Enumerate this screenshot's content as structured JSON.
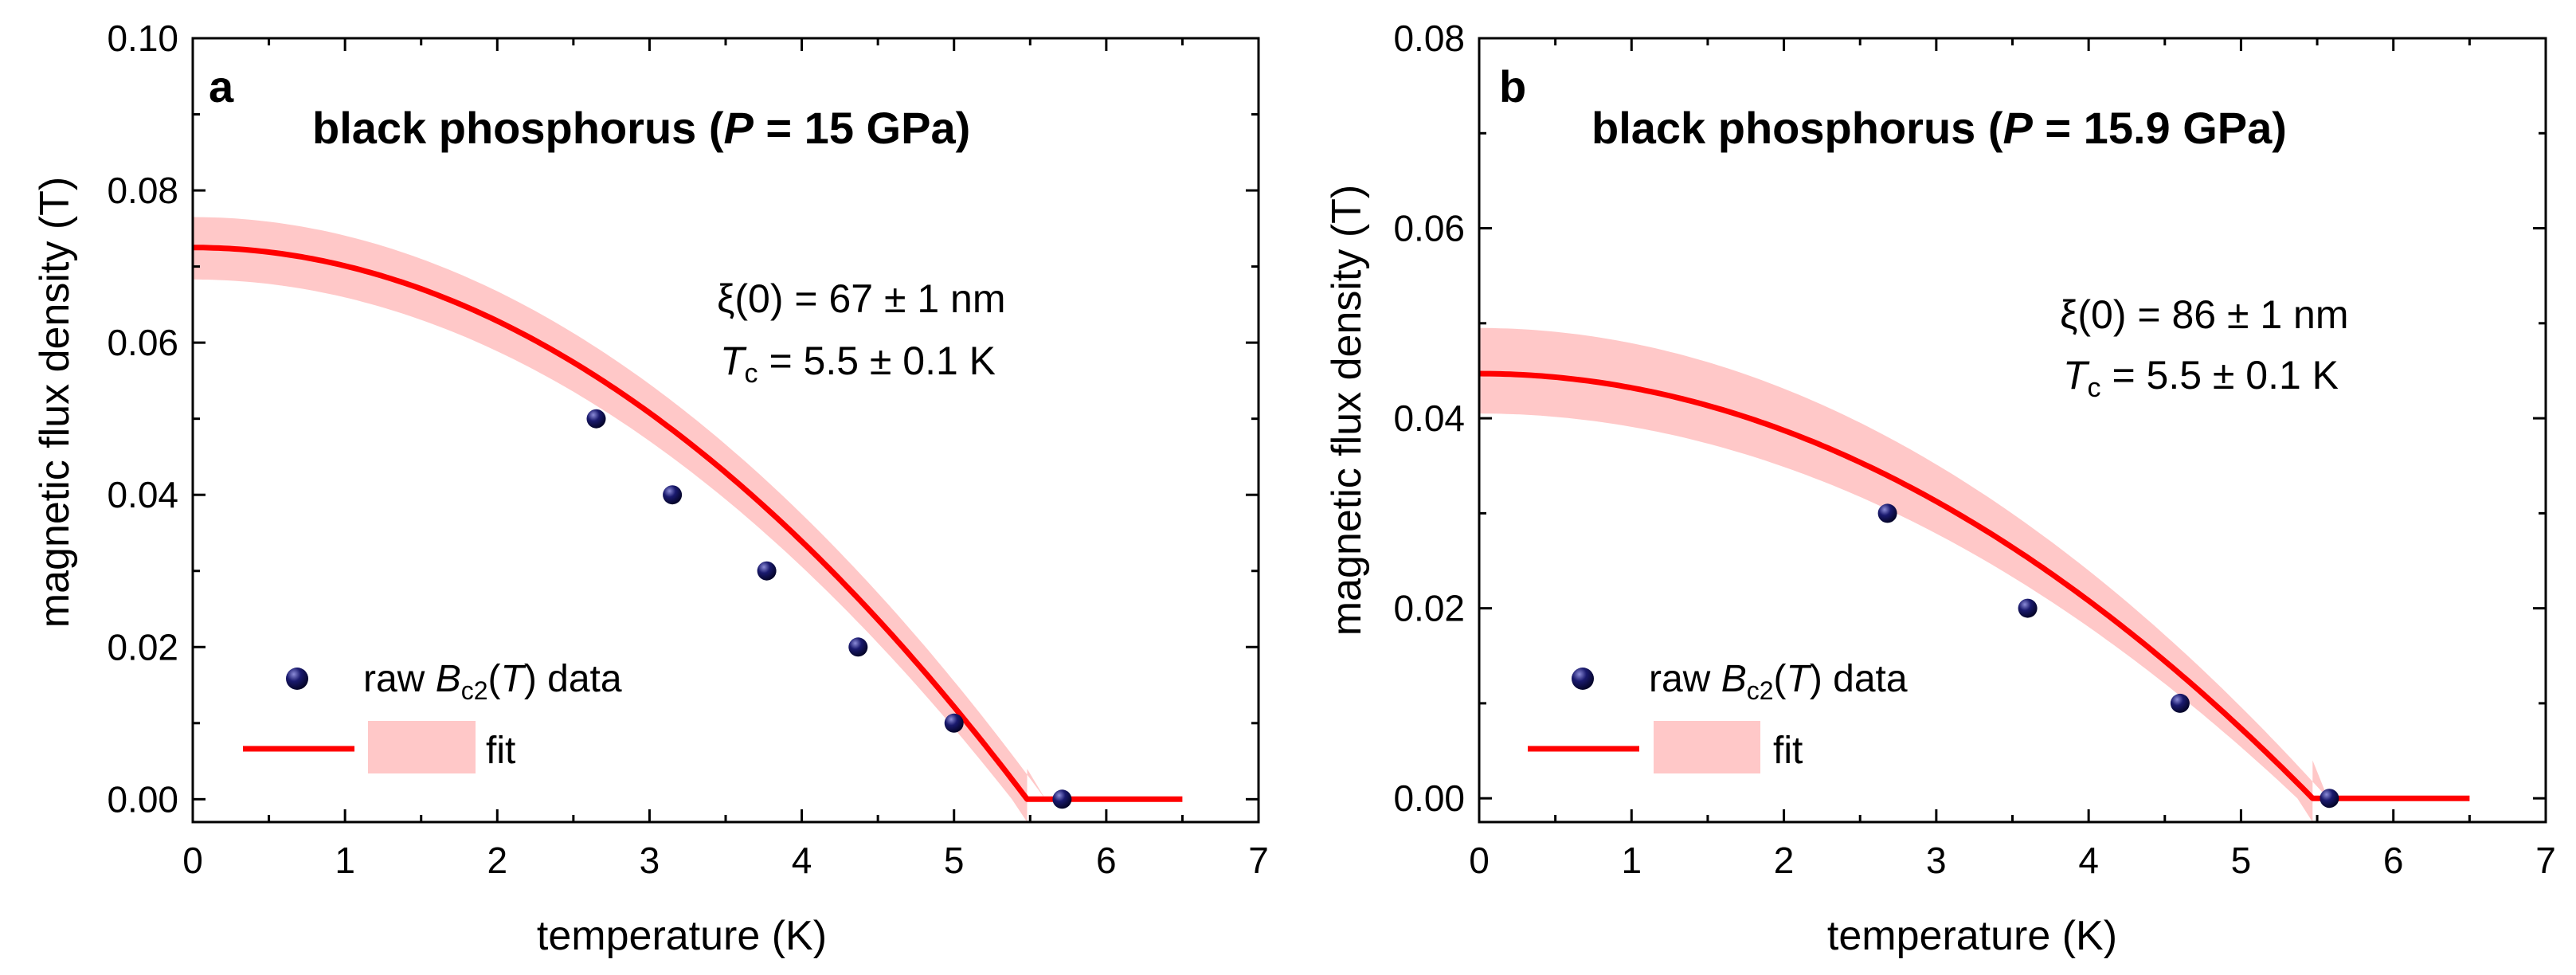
{
  "colors": {
    "fit_line": "#ff0000",
    "band": "#ffc8c8",
    "marker": "#1a1a6e",
    "marker_highlight": "#8c8cd8",
    "axis": "#000000"
  },
  "chart_data": [
    {
      "type": "scatter",
      "panel": "a",
      "title": {
        "prefix": "black phosphorus (",
        "italic": "P",
        "suffix": " = 15 GPa)"
      },
      "xlabel": "temperature (K)",
      "ylabel": "magnetic flux density (T)",
      "xlim": [
        0,
        7
      ],
      "ylim": [
        -0.003,
        0.1
      ],
      "xticks": [
        0,
        1,
        2,
        3,
        4,
        5,
        6,
        7
      ],
      "yticks": [
        0.0,
        0.02,
        0.04,
        0.06,
        0.08,
        0.1
      ],
      "ytick_labels": [
        "0.00",
        "0.02",
        "0.04",
        "0.06",
        "0.08",
        "0.10"
      ],
      "grid": false,
      "annotation": {
        "xi_line": "ξ(0) = 67 ± 1 nm",
        "tc_symbol": "T",
        "tc_sub": "c",
        "tc_value": " = 5.5 ± 0.1 K"
      },
      "legend": {
        "position": "bottom-left",
        "data_prefix": "raw ",
        "data_symbol": "B",
        "data_sub": "c2",
        "data_paren_open": "(",
        "data_var": "T",
        "data_suffix": ") data",
        "fit_label": "fit"
      },
      "series": [
        {
          "name": "raw Bc2(T) data",
          "x": [
            2.65,
            3.15,
            3.77,
            4.37,
            5.0,
            5.71
          ],
          "y": [
            0.05,
            0.04,
            0.03,
            0.02,
            0.01,
            0.0
          ]
        },
        {
          "name": "fit",
          "model": "Bc2(0)*(1-(T/Tc)^2), clipped to 0 above Tc",
          "bc2_zero": 0.0725,
          "tc": 5.48,
          "x_end": 6.5,
          "band_upper": 0.0765,
          "band_lower": 0.0683,
          "band_tc_upper": 5.6,
          "band_tc_lower": 5.38
        }
      ]
    },
    {
      "type": "scatter",
      "panel": "b",
      "title": {
        "prefix": "black phosphorus (",
        "italic": "P",
        "suffix": " = 15.9 GPa)"
      },
      "xlabel": "temperature (K)",
      "ylabel": "magnetic flux density (T)",
      "xlim": [
        0,
        7
      ],
      "ylim": [
        -0.0025,
        0.08
      ],
      "xticks": [
        0,
        1,
        2,
        3,
        4,
        5,
        6,
        7
      ],
      "yticks": [
        0.0,
        0.02,
        0.04,
        0.06,
        0.08
      ],
      "ytick_labels": [
        "0.00",
        "0.02",
        "0.04",
        "0.06",
        "0.08"
      ],
      "grid": false,
      "annotation": {
        "xi_line": "ξ(0) = 86 ± 1 nm",
        "tc_symbol": "T",
        "tc_sub": "c",
        "tc_value": " = 5.5 ± 0.1 K"
      },
      "legend": {
        "position": "bottom-left",
        "data_prefix": "raw ",
        "data_symbol": "B",
        "data_sub": "c2",
        "data_paren_open": "(",
        "data_var": "T",
        "data_suffix": ") data",
        "fit_label": "fit"
      },
      "series": [
        {
          "name": "raw Bc2(T) data",
          "x": [
            2.68,
            3.6,
            4.6,
            5.58
          ],
          "y": [
            0.03,
            0.02,
            0.01,
            0.0
          ]
        },
        {
          "name": "fit",
          "model": "Bc2(0)*(1-(T/Tc)^2), clipped to 0 above Tc",
          "bc2_zero": 0.0447,
          "tc": 5.47,
          "x_end": 6.5,
          "band_upper": 0.0495,
          "band_lower": 0.0405,
          "band_tc_upper": 5.57,
          "band_tc_lower": 5.37
        }
      ]
    }
  ]
}
